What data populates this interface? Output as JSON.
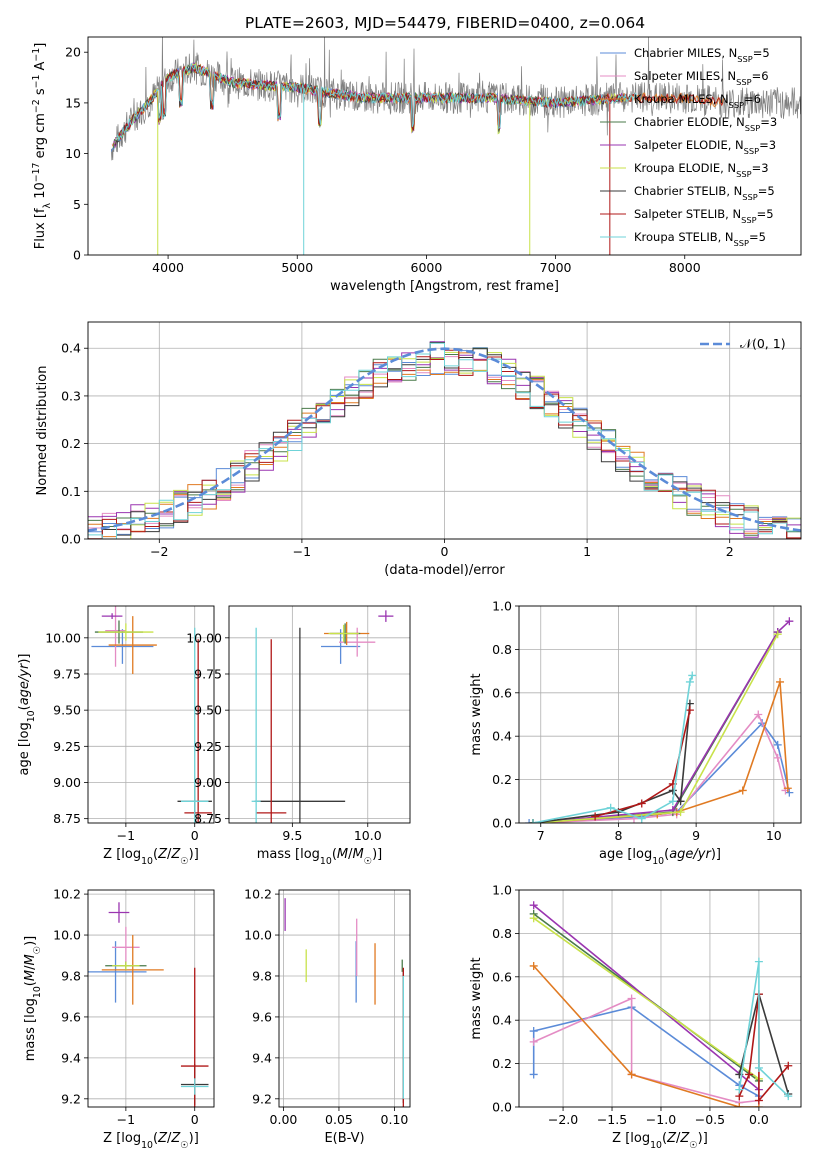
{
  "figure": {
    "title": "PLATE=2603, MJD=54479, FIBERID=0400, z=0.064"
  },
  "legend": [
    {
      "label": "Chabrier MILES, N_SSP=5",
      "color": "#5b8bd8"
    },
    {
      "label": "Salpeter MILES, N_SSP=6",
      "color": "#e48cc4"
    },
    {
      "label": "Kroupa MILES, N_SSP=6",
      "color": "#e07a22"
    },
    {
      "label": "Chabrier ELODIE, N_SSP=3",
      "color": "#4a7a4a"
    },
    {
      "label": "Salpeter ELODIE, N_SSP=3",
      "color": "#9a35b0"
    },
    {
      "label": "Kroupa ELODIE, N_SSP=3",
      "color": "#c8e24a"
    },
    {
      "label": "Chabrier STELIB, N_SSP=5",
      "color": "#3a3a3a"
    },
    {
      "label": "Salpeter STELIB, N_SSP=5",
      "color": "#b01818"
    },
    {
      "label": "Kroupa STELIB, N_SSP=5",
      "color": "#6fd3d8"
    }
  ],
  "chart_data": [
    {
      "type": "line",
      "id": "spectrum",
      "xlabel": "wavelength [Angstrom, rest frame]",
      "ylabel": "Flux [f_λ 10^-17 erg cm^-2 s^-1 A^-1]",
      "xlim": [
        3380,
        8900
      ],
      "ylim": [
        0,
        21.5
      ],
      "xticks": [
        4000,
        5000,
        6000,
        7000,
        8000
      ],
      "yticks": [
        0,
        5,
        10,
        15,
        20
      ],
      "x_range_data": [
        3560,
        8900
      ],
      "continuum_knots": [
        [
          3560,
          10.5
        ],
        [
          3700,
          13.0
        ],
        [
          3850,
          15.0
        ],
        [
          4000,
          17.5
        ],
        [
          4200,
          18.5
        ],
        [
          4500,
          17.0
        ],
        [
          5000,
          16.5
        ],
        [
          5500,
          15.5
        ],
        [
          6000,
          15.5
        ],
        [
          6500,
          15.5
        ],
        [
          7000,
          15.0
        ],
        [
          7500,
          15.5
        ],
        [
          8000,
          15.5
        ],
        [
          8300,
          15.0
        ],
        [
          8900,
          15.0
        ]
      ],
      "grid": false
    },
    {
      "type": "line",
      "id": "residual-histogram",
      "xlabel": "(data-model)/error",
      "ylabel": "Normed distribution",
      "xlim": [
        -2.5,
        2.5
      ],
      "ylim": [
        0,
        0.455
      ],
      "xticks": [
        -2,
        -1,
        0,
        1,
        2
      ],
      "yticks": [
        0.0,
        0.1,
        0.2,
        0.3,
        0.4
      ],
      "bin_width": 0.1,
      "reference_label": "𝒩(0, 1)",
      "reference_color": "#5b8bd8",
      "grid": true
    },
    {
      "type": "scatter",
      "id": "age-vs-Z",
      "xlabel": "Z [log10(Z/Z☉)]",
      "ylabel": "age  [log10(age/yr)]",
      "xlim": [
        -1.55,
        0.28
      ],
      "ylim": [
        8.72,
        10.22
      ],
      "xticks": [
        -1,
        0
      ],
      "xticklabels": [
        "−1",
        "0"
      ],
      "yticks": [
        8.75,
        9.0,
        9.25,
        9.5,
        9.75,
        10.0
      ],
      "yticklabels": [
        "8.75",
        "9.00",
        "9.25",
        "9.50",
        "9.75",
        "10.00"
      ],
      "points": [
        {
          "s": 0,
          "x": -1.05,
          "y": 9.94,
          "xerr": 0.45,
          "yerr": 0.12
        },
        {
          "s": 1,
          "x": -1.15,
          "y": 10.05,
          "xerr": 0.15,
          "yerr": 0.25
        },
        {
          "s": 2,
          "x": -0.9,
          "y": 9.95,
          "xerr": 0.35,
          "yerr": 0.2
        },
        {
          "s": 3,
          "x": -1.1,
          "y": 10.04,
          "xerr": 0.35,
          "yerr": 0.08
        },
        {
          "s": 4,
          "x": -1.2,
          "y": 10.15,
          "xerr": 0.15,
          "yerr": 0.02
        },
        {
          "s": 5,
          "x": -1.0,
          "y": 10.04,
          "xerr": 0.4,
          "yerr": 0.06
        },
        {
          "s": 6,
          "x": 0.0,
          "y": 8.87,
          "xerr": 0.25,
          "yerr": 0.1
        },
        {
          "s": 7,
          "x": 0.05,
          "y": 8.79,
          "xerr": 0.2,
          "yerr": 1.2
        },
        {
          "s": 8,
          "x": 0.0,
          "y": 8.87,
          "xerr": 0.2,
          "yerr": 1.2
        }
      ]
    },
    {
      "type": "scatter",
      "id": "age-vs-mass",
      "xlabel": "mass [log10(M/M☉)]",
      "ylabel": "",
      "xlim": [
        9.08,
        10.28
      ],
      "ylim": [
        8.72,
        10.22
      ],
      "xticks": [
        9.5,
        10.0
      ],
      "xticklabels": [
        "9.5",
        "10.0"
      ],
      "yticks": [
        8.75,
        9.0,
        9.25,
        9.5,
        9.75,
        10.0
      ],
      "yticklabels": [
        "8.75",
        "9.00",
        "9.25",
        "9.50",
        "9.75",
        "10.00"
      ],
      "points": [
        {
          "s": 0,
          "x": 9.82,
          "y": 9.94,
          "xerr": 0.13,
          "yerr": 0.12
        },
        {
          "s": 1,
          "x": 9.93,
          "y": 9.97,
          "xerr": 0.12,
          "yerr": 0.1
        },
        {
          "s": 2,
          "x": 9.86,
          "y": 10.03,
          "xerr": 0.15,
          "yerr": 0.08
        },
        {
          "s": 3,
          "x": 9.85,
          "y": 10.03,
          "xerr": 0.1,
          "yerr": 0.07
        },
        {
          "s": 4,
          "x": 10.12,
          "y": 10.15,
          "xerr": 0.05,
          "yerr": 0.04
        },
        {
          "s": 5,
          "x": 9.84,
          "y": 10.03,
          "xerr": 0.1,
          "yerr": 0.06
        },
        {
          "s": 6,
          "x": 9.55,
          "y": 8.87,
          "xerr": 0.3,
          "yerr": 1.2
        },
        {
          "s": 7,
          "x": 9.36,
          "y": 8.79,
          "xerr": 0.1,
          "yerr": 1.2
        },
        {
          "s": 8,
          "x": 9.26,
          "y": 8.87,
          "xerr": 0.03,
          "yerr": 1.2
        }
      ]
    },
    {
      "type": "line",
      "id": "mass-weight-vs-age",
      "xlabel": "age  [log10(age/yr)]",
      "ylabel": "mass weight",
      "xlim": [
        6.72,
        10.35
      ],
      "ylim": [
        0,
        1.0
      ],
      "xticks": [
        7,
        8,
        9,
        10
      ],
      "yticks": [
        0.0,
        0.2,
        0.4,
        0.6,
        0.8,
        1.0
      ],
      "yticklabels": [
        "0.0",
        "0.2",
        "0.4",
        "0.6",
        "0.8",
        "1.0"
      ],
      "series": [
        {
          "s": 0,
          "x": [
            6.85,
            8.3,
            8.75,
            9.85,
            10.05,
            10.2
          ],
          "y": [
            0.0,
            0.03,
            0.05,
            0.46,
            0.36,
            0.14
          ]
        },
        {
          "s": 1,
          "x": [
            6.9,
            8.2,
            8.75,
            9.8,
            10.05,
            10.15
          ],
          "y": [
            0.0,
            0.02,
            0.04,
            0.5,
            0.3,
            0.15
          ]
        },
        {
          "s": 2,
          "x": [
            6.9,
            8.5,
            8.75,
            9.6,
            10.08,
            10.18
          ],
          "y": [
            0.0,
            0.04,
            0.05,
            0.15,
            0.65,
            0.16
          ]
        },
        {
          "s": 3,
          "x": [
            6.9,
            8.7,
            10.05
          ],
          "y": [
            0.0,
            0.05,
            0.88
          ]
        },
        {
          "s": 4,
          "x": [
            6.9,
            8.7,
            10.05,
            10.2
          ],
          "y": [
            0.0,
            0.06,
            0.88,
            0.93
          ]
        },
        {
          "s": 5,
          "x": [
            6.9,
            8.8,
            10.05
          ],
          "y": [
            0.0,
            0.05,
            0.87
          ]
        },
        {
          "s": 6,
          "x": [
            6.9,
            8.0,
            8.7,
            8.8,
            8.92
          ],
          "y": [
            0.0,
            0.05,
            0.15,
            0.1,
            0.55
          ]
        },
        {
          "s": 7,
          "x": [
            7.7,
            8.3,
            8.7,
            8.92
          ],
          "y": [
            0.03,
            0.09,
            0.18,
            0.52
          ]
        },
        {
          "s": 8,
          "x": [
            6.9,
            7.9,
            8.3,
            8.7,
            8.92,
            8.95
          ],
          "y": [
            0.0,
            0.07,
            0.02,
            0.1,
            0.65,
            0.68
          ]
        }
      ]
    },
    {
      "type": "scatter",
      "id": "mass-vs-Z",
      "xlabel": "Z [log10(Z/Z☉)]",
      "ylabel": "mass [log10(M/M☉)]",
      "xlim": [
        -1.55,
        0.28
      ],
      "ylim": [
        9.16,
        10.22
      ],
      "xticks": [
        -1,
        0
      ],
      "xticklabels": [
        "−1",
        "0"
      ],
      "yticks": [
        9.2,
        9.4,
        9.6,
        9.8,
        10.0,
        10.2
      ],
      "yticklabels": [
        "9.2",
        "9.4",
        "9.6",
        "9.8",
        "10.0",
        "10.2"
      ],
      "points": [
        {
          "s": 0,
          "x": -1.15,
          "y": 9.82,
          "xerr": 0.45,
          "yerr": 0.15
        },
        {
          "s": 1,
          "x": -1.0,
          "y": 9.94,
          "xerr": 0.2,
          "yerr": 0.1
        },
        {
          "s": 2,
          "x": -0.9,
          "y": 9.83,
          "xerr": 0.45,
          "yerr": 0.17
        },
        {
          "s": 3,
          "x": -1.0,
          "y": 9.85,
          "xerr": 0.3,
          "yerr": 0.02
        },
        {
          "s": 4,
          "x": -1.1,
          "y": 10.11,
          "xerr": 0.15,
          "yerr": 0.05
        },
        {
          "s": 5,
          "x": -1.0,
          "y": 9.85,
          "xerr": 0.2,
          "yerr": 0.02
        },
        {
          "s": 6,
          "x": 0.0,
          "y": 9.27,
          "xerr": 0.2,
          "yerr": 0.1
        },
        {
          "s": 7,
          "x": 0.0,
          "y": 9.36,
          "xerr": 0.2,
          "yerr": 0.48
        },
        {
          "s": 8,
          "x": 0.0,
          "y": 9.26,
          "xerr": 0.2,
          "yerr": 0.04
        }
      ]
    },
    {
      "type": "scatter",
      "id": "mass-vs-EBV",
      "xlabel": "E(B-V)",
      "ylabel": "",
      "xlim": [
        -0.004,
        0.114
      ],
      "ylim": [
        9.16,
        10.22
      ],
      "xticks": [
        0.0,
        0.05,
        0.1
      ],
      "xticklabels": [
        "0.00",
        "0.05",
        "0.10"
      ],
      "yticks": [
        9.2,
        9.4,
        9.6,
        9.8,
        10.0,
        10.2
      ],
      "yticklabels": [
        "9.2",
        "9.4",
        "9.6",
        "9.8",
        "10.0",
        "10.2"
      ],
      "points": [
        {
          "s": 0,
          "x": 0.0655,
          "y": 9.82,
          "xerr": 0,
          "yerr": 0.15
        },
        {
          "s": 1,
          "x": 0.066,
          "y": 9.94,
          "xerr": 0,
          "yerr": 0.14
        },
        {
          "s": 2,
          "x": 0.0825,
          "y": 9.81,
          "xerr": 0,
          "yerr": 0.15
        },
        {
          "s": 3,
          "x": 0.107,
          "y": 9.85,
          "xerr": 0,
          "yerr": 0.03
        },
        {
          "s": 4,
          "x": 0.0015,
          "y": 10.1,
          "xerr": 0,
          "yerr": 0.08
        },
        {
          "s": 5,
          "x": 0.0205,
          "y": 9.85,
          "xerr": 0,
          "yerr": 0.08
        },
        {
          "s": 6,
          "x": 0.108,
          "y": 9.5,
          "xerr": 0,
          "yerr": 0.32
        },
        {
          "s": 7,
          "x": 0.108,
          "y": 9.36,
          "xerr": 0,
          "yerr": 0.48
        },
        {
          "s": 8,
          "x": 0.108,
          "y": 9.5,
          "xerr": 0,
          "yerr": 0.3
        }
      ]
    },
    {
      "type": "line",
      "id": "mass-weight-vs-Z",
      "xlabel": "Z [log10(Z/Z☉)]",
      "ylabel": "mass weight",
      "xlim": [
        -2.45,
        0.43
      ],
      "ylim": [
        0,
        1.0
      ],
      "xticks": [
        -2.0,
        -1.5,
        -1.0,
        -0.5,
        0.0
      ],
      "xticklabels": [
        "−2.0",
        "−1.5",
        "−1.0",
        "−0.5",
        "0.0"
      ],
      "yticks": [
        0.0,
        0.2,
        0.4,
        0.6,
        0.8,
        1.0
      ],
      "yticklabels": [
        "0.0",
        "0.2",
        "0.4",
        "0.6",
        "0.8",
        "1.0"
      ],
      "series": [
        {
          "s": 0,
          "x": [
            -2.3,
            -2.3,
            -1.3,
            -0.2,
            0.0
          ],
          "y": [
            0.15,
            0.35,
            0.46,
            0.1,
            0.05
          ]
        },
        {
          "s": 1,
          "x": [
            -2.3,
            -1.3,
            -1.3,
            -0.2,
            0.0
          ],
          "y": [
            0.3,
            0.5,
            0.15,
            0.02,
            0.03
          ]
        },
        {
          "s": 2,
          "x": [
            -2.3,
            -1.3,
            -0.2,
            0.0
          ],
          "y": [
            0.65,
            0.15,
            0.0,
            0.0
          ]
        },
        {
          "s": 3,
          "x": [
            -2.3,
            0.0
          ],
          "y": [
            0.89,
            0.12
          ]
        },
        {
          "s": 4,
          "x": [
            -2.3,
            0.0
          ],
          "y": [
            0.93,
            0.08
          ]
        },
        {
          "s": 5,
          "x": [
            -2.3,
            0.0
          ],
          "y": [
            0.87,
            0.13
          ]
        },
        {
          "s": 6,
          "x": [
            -0.2,
            0.0,
            0.3
          ],
          "y": [
            0.15,
            0.52,
            0.06
          ]
        },
        {
          "s": 7,
          "x": [
            -0.2,
            -0.1,
            0.0,
            0.0,
            0.3
          ],
          "y": [
            0.05,
            0.15,
            0.52,
            0.03,
            0.19
          ]
        },
        {
          "s": 8,
          "x": [
            -0.2,
            0.0,
            0.0,
            0.3
          ],
          "y": [
            0.08,
            0.67,
            0.18,
            0.05
          ]
        }
      ]
    }
  ]
}
